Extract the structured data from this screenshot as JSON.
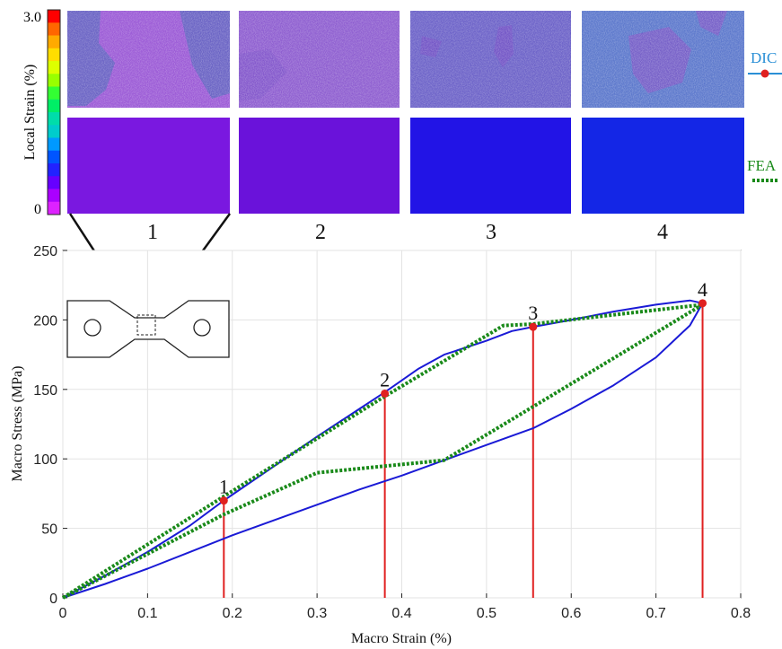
{
  "colorbar": {
    "max_label": "3.0",
    "min_label": "0",
    "title": "Local Strain (%)",
    "colors": [
      "#ff0000",
      "#ff6600",
      "#ffaa00",
      "#ffdd00",
      "#ddff00",
      "#99ff00",
      "#33ff33",
      "#00ee66",
      "#00ddaa",
      "#00cccc",
      "#0099ff",
      "#0055ff",
      "#2222ff",
      "#6600ff",
      "#aa00ff",
      "#dd22ff"
    ]
  },
  "panels": [
    {
      "number": "1",
      "dic_color": "#9b5ad6",
      "dic_patch": "#6a63c4",
      "fea_color": "#7a18e0"
    },
    {
      "number": "2",
      "dic_color": "#8e5ed0",
      "dic_patch": "#8458cc",
      "fea_color": "#6a12da"
    },
    {
      "number": "3",
      "dic_color": "#6c62c8",
      "dic_patch": "#7255c6",
      "fea_color": "#2214e6"
    },
    {
      "number": "4",
      "dic_color": "#5c78cc",
      "dic_patch": "#7660c8",
      "fea_color": "#1426e6"
    }
  ],
  "legend": {
    "dic": {
      "label": "DIC",
      "color": "#2a8fd6"
    },
    "fea": {
      "label": "FEA",
      "color": "#1a8a1a"
    }
  },
  "chart_data": {
    "type": "line",
    "xlabel": "Macro Strain (%)",
    "ylabel": "Macro Stress (MPa)",
    "xlim": [
      0,
      0.8
    ],
    "ylim": [
      0,
      250
    ],
    "xticks": [
      "0",
      "0.1",
      "0.2",
      "0.3",
      "0.4",
      "0.5",
      "0.6",
      "0.7",
      "0.8"
    ],
    "yticks": [
      "0",
      "50",
      "100",
      "150",
      "200",
      "250"
    ],
    "grid": true,
    "series": [
      {
        "name": "DIC",
        "color": "#1a1ad6",
        "style": "solid",
        "x": [
          0,
          0.05,
          0.1,
          0.15,
          0.19,
          0.25,
          0.3,
          0.35,
          0.38,
          0.42,
          0.45,
          0.5,
          0.53,
          0.555,
          0.6,
          0.65,
          0.7,
          0.74,
          0.755,
          0.74,
          0.7,
          0.65,
          0.6,
          0.555,
          0.5,
          0.45,
          0.4,
          0.35,
          0.3,
          0.25,
          0.2,
          0.15,
          0.1,
          0.05,
          0
        ],
        "y": [
          0,
          16,
          33,
          52,
          70,
          95,
          116,
          136,
          148,
          165,
          175,
          185,
          192,
          195,
          200,
          206,
          211,
          214,
          212,
          196,
          173,
          153,
          136,
          122,
          110,
          99,
          88,
          78,
          67,
          56,
          45,
          33,
          21,
          10,
          0
        ]
      },
      {
        "name": "FEA",
        "color": "#1a8a1a",
        "style": "dotted",
        "x": [
          0,
          0.19,
          0.38,
          0.52,
          0.555,
          0.755,
          0.45,
          0.3,
          0.19,
          0
        ],
        "y": [
          0,
          73,
          145,
          196,
          197,
          211,
          99,
          90,
          60,
          0
        ]
      }
    ],
    "marked_points": [
      {
        "label": "1",
        "x": 0.19,
        "y": 70
      },
      {
        "label": "2",
        "x": 0.38,
        "y": 147
      },
      {
        "label": "3",
        "x": 0.555,
        "y": 195
      },
      {
        "label": "4",
        "x": 0.755,
        "y": 212
      }
    ],
    "marker_color": "#e02020",
    "drop_line_color": "#e02020"
  }
}
